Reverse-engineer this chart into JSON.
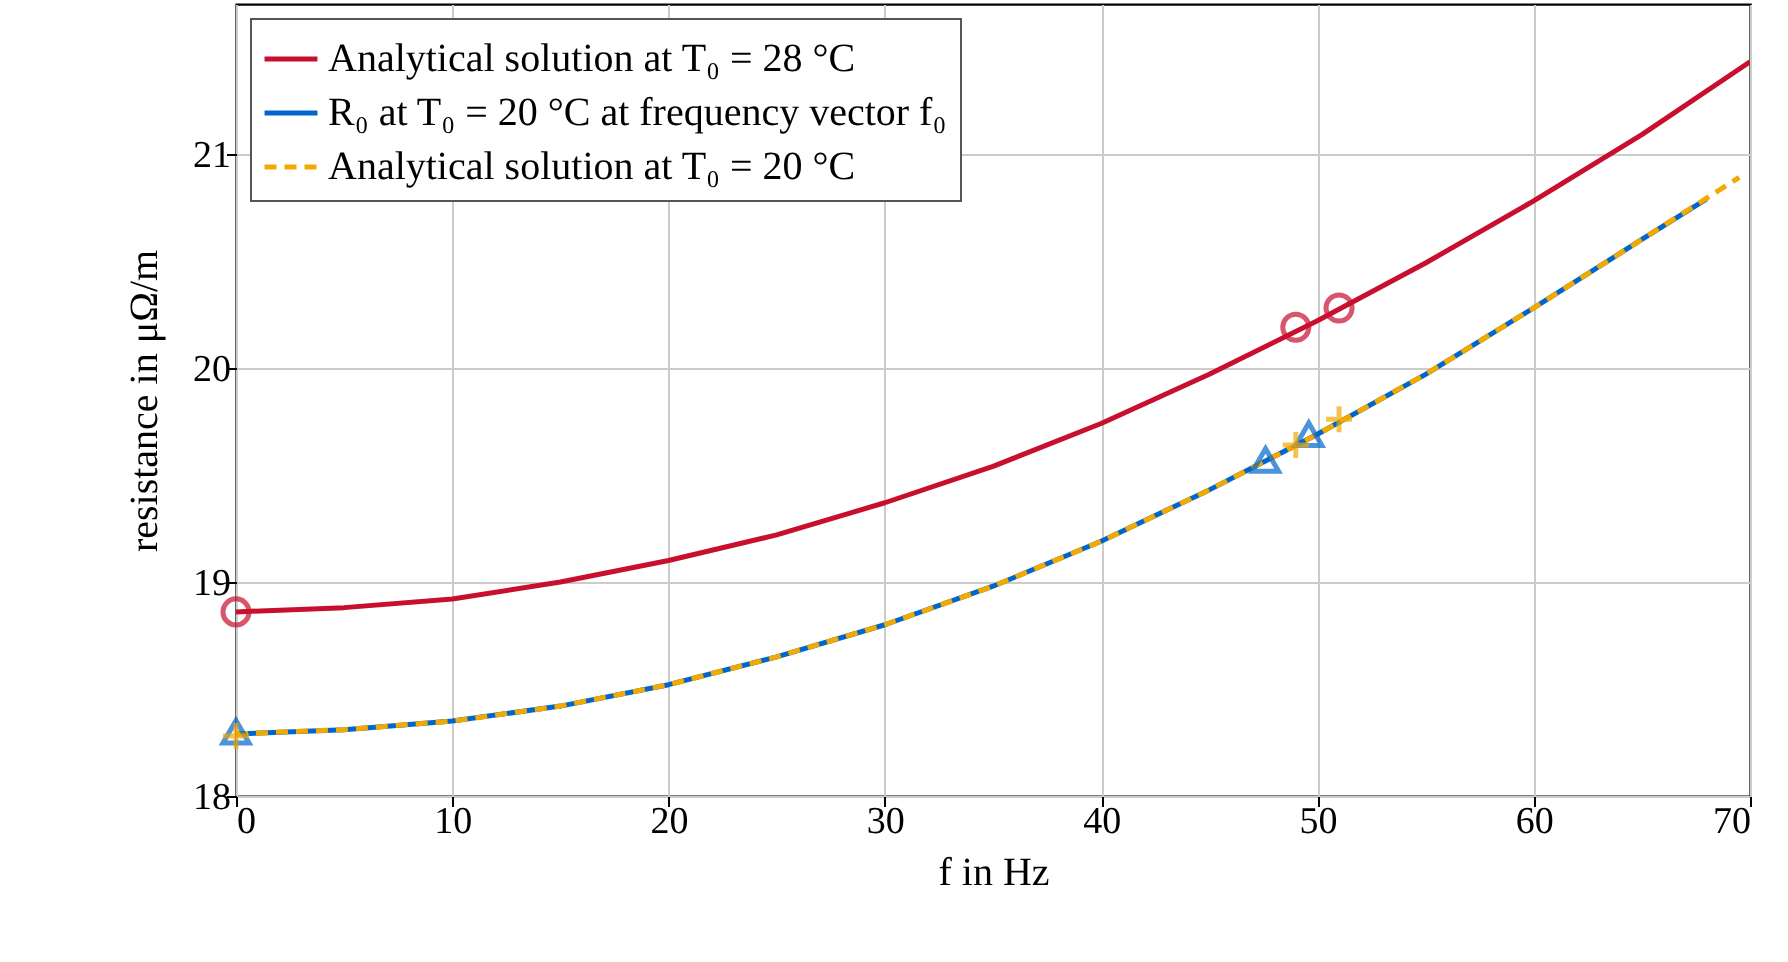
{
  "chart_data": {
    "type": "line",
    "xlabel": "f in Hz",
    "ylabel": "resistance in μΩ/m",
    "xlim": [
      0,
      70
    ],
    "ylim": [
      18,
      21.7
    ],
    "xticks": [
      0,
      10,
      20,
      30,
      40,
      50,
      60,
      70
    ],
    "yticks": [
      18,
      19,
      20,
      21
    ],
    "grid": true,
    "legend": "top left",
    "series": [
      {
        "name": "Analytical solution at T₀ = 28 °C",
        "color": "#c8102e",
        "line_style": "solid",
        "marker": "none",
        "x": [
          0,
          5,
          10,
          15,
          20,
          25,
          30,
          35,
          40,
          45,
          50,
          55,
          60,
          65,
          70
        ],
        "values": [
          18.86,
          18.88,
          18.92,
          19.0,
          19.1,
          19.22,
          19.37,
          19.54,
          19.74,
          19.97,
          20.22,
          20.49,
          20.78,
          21.09,
          21.43
        ]
      },
      {
        "name": "R₀ at T₀ = 20 °C at frequency vector f₀",
        "color": "#0066cc",
        "line_style": "solid",
        "marker": "none",
        "x": [
          0,
          5,
          10,
          15,
          20,
          25,
          30,
          35,
          40,
          45,
          50,
          55,
          60,
          65,
          68
        ],
        "values": [
          18.29,
          18.31,
          18.35,
          18.42,
          18.52,
          18.65,
          18.8,
          18.98,
          19.19,
          19.43,
          19.69,
          19.97,
          20.28,
          20.6,
          20.79
        ]
      },
      {
        "name": "Analytical solution at T₀ = 20 °C",
        "color": "#f2a900",
        "line_style": "dashed",
        "marker": "none",
        "x": [
          0,
          5,
          10,
          15,
          20,
          25,
          30,
          35,
          40,
          45,
          50,
          55,
          60,
          65,
          69.5
        ],
        "values": [
          18.29,
          18.31,
          18.35,
          18.42,
          18.52,
          18.65,
          18.8,
          18.98,
          19.19,
          19.43,
          19.69,
          19.97,
          20.28,
          20.6,
          20.89
        ]
      },
      {
        "type": "scatter",
        "color": "#c8102e",
        "marker": "circle",
        "x": [
          0,
          49,
          51
        ],
        "values": [
          18.86,
          20.19,
          20.28
        ]
      },
      {
        "type": "scatter",
        "color": "#0066cc",
        "marker": "triangle",
        "x": [
          0,
          47.6,
          49.6
        ],
        "values": [
          18.3,
          19.57,
          19.69
        ]
      },
      {
        "type": "scatter",
        "color": "#f2a900",
        "marker": "cross",
        "x": [
          0,
          49,
          51
        ],
        "values": [
          18.28,
          19.64,
          19.76
        ]
      }
    ]
  }
}
